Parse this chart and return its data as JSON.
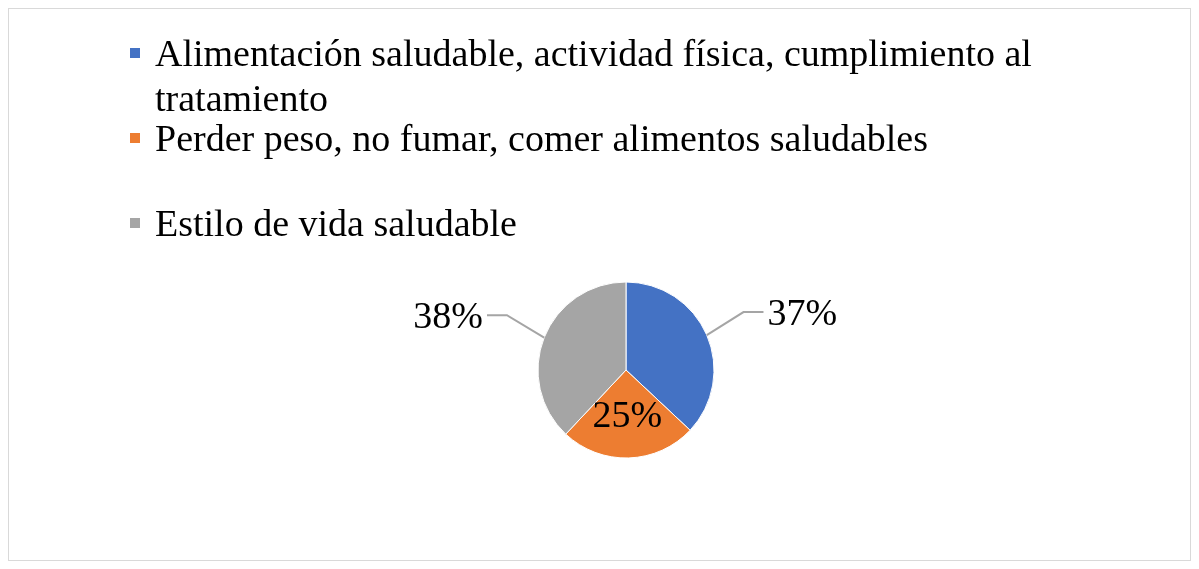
{
  "chart_data": {
    "type": "pie",
    "categories": [
      "Alimentación saludable, actividad física, cumplimiento al tratamiento",
      "Perder peso, no fumar, comer alimentos saludables",
      "Estilo de vida saludable"
    ],
    "values": [
      37,
      25,
      38
    ],
    "colors": [
      "#4472c4",
      "#ed7d31",
      "#a5a5a5"
    ],
    "value_labels": [
      "37%",
      "25%",
      "38%"
    ],
    "legend": "top"
  }
}
